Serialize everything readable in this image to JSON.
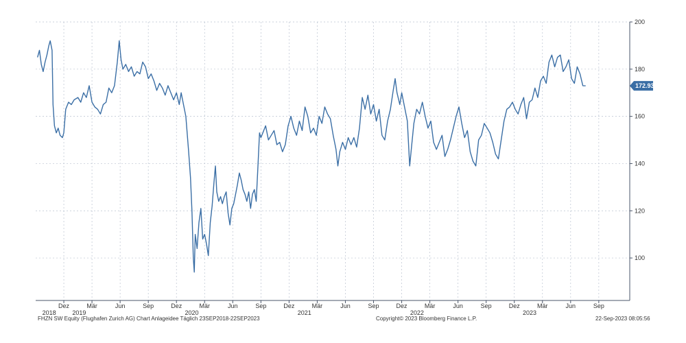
{
  "chart_data": {
    "type": "line",
    "ylim": [
      82,
      200
    ],
    "yticks": [
      100,
      120,
      140,
      160,
      180,
      200
    ],
    "month_ticks": [
      {
        "label": "Dez",
        "t": 2
      },
      {
        "label": "Mär",
        "t": 5
      },
      {
        "label": "Jun",
        "t": 8
      },
      {
        "label": "Sep",
        "t": 11
      },
      {
        "label": "Dez",
        "t": 14
      },
      {
        "label": "Mär",
        "t": 17
      },
      {
        "label": "Jun",
        "t": 20
      },
      {
        "label": "Sep",
        "t": 23
      },
      {
        "label": "Dez",
        "t": 26
      },
      {
        "label": "Mär",
        "t": 29
      },
      {
        "label": "Jun",
        "t": 32
      },
      {
        "label": "Sep",
        "t": 35
      },
      {
        "label": "Dez",
        "t": 38
      },
      {
        "label": "Mär",
        "t": 41
      },
      {
        "label": "Jun",
        "t": 44
      },
      {
        "label": "Sep",
        "t": 47
      },
      {
        "label": "Dez",
        "t": 50
      },
      {
        "label": "Mär",
        "t": 53
      },
      {
        "label": "Jun",
        "t": 56
      },
      {
        "label": "Sep",
        "t": 59
      }
    ],
    "year_labels": [
      {
        "label": "2018",
        "t": -0.3
      },
      {
        "label": "2019",
        "t": 2.9
      },
      {
        "label": "2020",
        "t": 14.9
      },
      {
        "label": "2021",
        "t": 26.9
      },
      {
        "label": "2022",
        "t": 38.9
      },
      {
        "label": "2023",
        "t": 50.9
      }
    ],
    "t_range": [
      -1,
      62.3
    ],
    "last_price": "172.93",
    "series": [
      {
        "name": "FHZN SW Equity",
        "color": "#3a6ea5",
        "points": [
          [
            -0.8,
            185
          ],
          [
            -0.6,
            188
          ],
          [
            -0.4,
            182
          ],
          [
            -0.2,
            179
          ],
          [
            0,
            183
          ],
          [
            0.2,
            186
          ],
          [
            0.4,
            190
          ],
          [
            0.55,
            192
          ],
          [
            0.75,
            188
          ],
          [
            0.85,
            165
          ],
          [
            1.0,
            156
          ],
          [
            1.2,
            153
          ],
          [
            1.4,
            155
          ],
          [
            1.6,
            152
          ],
          [
            1.85,
            151
          ],
          [
            2.0,
            153
          ],
          [
            2.2,
            163
          ],
          [
            2.5,
            166
          ],
          [
            2.8,
            165
          ],
          [
            3.1,
            167
          ],
          [
            3.5,
            168
          ],
          [
            3.8,
            166
          ],
          [
            4.1,
            170
          ],
          [
            4.4,
            168
          ],
          [
            4.7,
            173
          ],
          [
            5.0,
            166
          ],
          [
            5.3,
            164
          ],
          [
            5.6,
            163
          ],
          [
            5.9,
            161
          ],
          [
            6.2,
            165
          ],
          [
            6.5,
            166
          ],
          [
            6.8,
            172
          ],
          [
            7.1,
            170
          ],
          [
            7.4,
            173
          ],
          [
            7.7,
            183
          ],
          [
            7.9,
            192
          ],
          [
            8.1,
            184
          ],
          [
            8.3,
            180
          ],
          [
            8.6,
            182
          ],
          [
            8.9,
            179
          ],
          [
            9.2,
            181
          ],
          [
            9.5,
            177
          ],
          [
            9.8,
            179
          ],
          [
            10.1,
            178
          ],
          [
            10.4,
            183
          ],
          [
            10.7,
            181
          ],
          [
            11.0,
            176
          ],
          [
            11.3,
            178
          ],
          [
            11.6,
            175
          ],
          [
            11.9,
            171
          ],
          [
            12.2,
            174
          ],
          [
            12.5,
            172
          ],
          [
            12.8,
            169
          ],
          [
            13.1,
            173
          ],
          [
            13.4,
            170
          ],
          [
            13.7,
            167
          ],
          [
            14.0,
            170
          ],
          [
            14.3,
            165
          ],
          [
            14.5,
            170
          ],
          [
            14.7,
            166
          ],
          [
            15.0,
            160
          ],
          [
            15.3,
            145
          ],
          [
            15.5,
            134
          ],
          [
            15.65,
            120
          ],
          [
            15.8,
            100
          ],
          [
            15.9,
            94
          ],
          [
            16.0,
            110
          ],
          [
            16.2,
            104
          ],
          [
            16.4,
            115
          ],
          [
            16.6,
            121
          ],
          [
            16.8,
            108
          ],
          [
            17.0,
            110
          ],
          [
            17.2,
            106
          ],
          [
            17.4,
            101
          ],
          [
            17.6,
            115
          ],
          [
            17.8,
            122
          ],
          [
            18.0,
            132
          ],
          [
            18.15,
            139
          ],
          [
            18.3,
            128
          ],
          [
            18.5,
            124
          ],
          [
            18.7,
            126
          ],
          [
            18.9,
            123
          ],
          [
            19.1,
            126
          ],
          [
            19.3,
            128
          ],
          [
            19.5,
            119
          ],
          [
            19.7,
            114
          ],
          [
            19.9,
            121
          ],
          [
            20.1,
            123
          ],
          [
            20.3,
            127
          ],
          [
            20.5,
            131
          ],
          [
            20.7,
            136
          ],
          [
            20.9,
            133
          ],
          [
            21.1,
            129
          ],
          [
            21.3,
            127
          ],
          [
            21.5,
            124
          ],
          [
            21.7,
            128
          ],
          [
            21.9,
            121
          ],
          [
            22.1,
            127
          ],
          [
            22.3,
            129
          ],
          [
            22.5,
            124
          ],
          [
            22.7,
            140
          ],
          [
            22.85,
            153
          ],
          [
            23.0,
            151
          ],
          [
            23.2,
            153
          ],
          [
            23.5,
            156
          ],
          [
            23.8,
            150
          ],
          [
            24.1,
            152
          ],
          [
            24.4,
            154
          ],
          [
            24.7,
            148
          ],
          [
            25.0,
            149
          ],
          [
            25.3,
            145
          ],
          [
            25.6,
            148
          ],
          [
            25.9,
            156
          ],
          [
            26.2,
            160
          ],
          [
            26.5,
            155
          ],
          [
            26.8,
            152
          ],
          [
            27.1,
            158
          ],
          [
            27.4,
            154
          ],
          [
            27.7,
            164
          ],
          [
            28.0,
            160
          ],
          [
            28.3,
            153
          ],
          [
            28.6,
            155
          ],
          [
            28.9,
            152
          ],
          [
            29.2,
            160
          ],
          [
            29.5,
            157
          ],
          [
            29.8,
            164
          ],
          [
            30.1,
            161
          ],
          [
            30.4,
            159
          ],
          [
            30.7,
            152
          ],
          [
            31.0,
            146
          ],
          [
            31.2,
            139
          ],
          [
            31.4,
            145
          ],
          [
            31.7,
            149
          ],
          [
            32.0,
            146
          ],
          [
            32.3,
            151
          ],
          [
            32.6,
            148
          ],
          [
            32.9,
            151
          ],
          [
            33.2,
            147
          ],
          [
            33.5,
            155
          ],
          [
            33.8,
            168
          ],
          [
            34.1,
            163
          ],
          [
            34.4,
            169
          ],
          [
            34.7,
            161
          ],
          [
            35.0,
            165
          ],
          [
            35.3,
            158
          ],
          [
            35.6,
            163
          ],
          [
            35.9,
            152
          ],
          [
            36.2,
            150
          ],
          [
            36.5,
            158
          ],
          [
            36.8,
            163
          ],
          [
            37.1,
            171
          ],
          [
            37.3,
            176
          ],
          [
            37.5,
            170
          ],
          [
            37.8,
            165
          ],
          [
            38.0,
            170
          ],
          [
            38.3,
            164
          ],
          [
            38.6,
            158
          ],
          [
            38.85,
            139
          ],
          [
            39.0,
            145
          ],
          [
            39.3,
            157
          ],
          [
            39.6,
            163
          ],
          [
            39.9,
            161
          ],
          [
            40.2,
            166
          ],
          [
            40.5,
            160
          ],
          [
            40.8,
            155
          ],
          [
            41.1,
            158
          ],
          [
            41.4,
            149
          ],
          [
            41.7,
            146
          ],
          [
            42.0,
            149
          ],
          [
            42.3,
            152
          ],
          [
            42.6,
            143
          ],
          [
            42.9,
            146
          ],
          [
            43.2,
            150
          ],
          [
            43.5,
            155
          ],
          [
            43.8,
            160
          ],
          [
            44.1,
            164
          ],
          [
            44.4,
            157
          ],
          [
            44.7,
            151
          ],
          [
            45.0,
            154
          ],
          [
            45.3,
            145
          ],
          [
            45.6,
            141
          ],
          [
            45.9,
            139
          ],
          [
            46.2,
            150
          ],
          [
            46.5,
            152
          ],
          [
            46.8,
            157
          ],
          [
            47.1,
            155
          ],
          [
            47.4,
            153
          ],
          [
            47.7,
            149
          ],
          [
            48.0,
            144
          ],
          [
            48.3,
            142
          ],
          [
            48.6,
            150
          ],
          [
            48.9,
            158
          ],
          [
            49.2,
            163
          ],
          [
            49.5,
            164
          ],
          [
            49.8,
            166
          ],
          [
            50.1,
            163
          ],
          [
            50.4,
            161
          ],
          [
            50.7,
            165
          ],
          [
            51.0,
            168
          ],
          [
            51.3,
            159
          ],
          [
            51.6,
            166
          ],
          [
            51.9,
            167
          ],
          [
            52.2,
            172
          ],
          [
            52.5,
            168
          ],
          [
            52.8,
            175
          ],
          [
            53.1,
            177
          ],
          [
            53.4,
            174
          ],
          [
            53.7,
            183
          ],
          [
            54.0,
            186
          ],
          [
            54.3,
            181
          ],
          [
            54.6,
            185
          ],
          [
            54.9,
            186
          ],
          [
            55.2,
            179
          ],
          [
            55.5,
            181
          ],
          [
            55.8,
            184
          ],
          [
            56.1,
            176
          ],
          [
            56.4,
            174
          ],
          [
            56.7,
            181
          ],
          [
            57.0,
            178
          ],
          [
            57.3,
            173
          ],
          [
            57.6,
            172.93
          ]
        ]
      }
    ]
  },
  "footer": {
    "left": "FHZN SW Equity (Flughafen Zurich AG) Chart Anlageidee  Täglich 23SEP2018-22SEP2023",
    "center": "Copyright© 2023 Bloomberg Finance L.P.",
    "right": "22-Sep-2023 08:05:56"
  }
}
